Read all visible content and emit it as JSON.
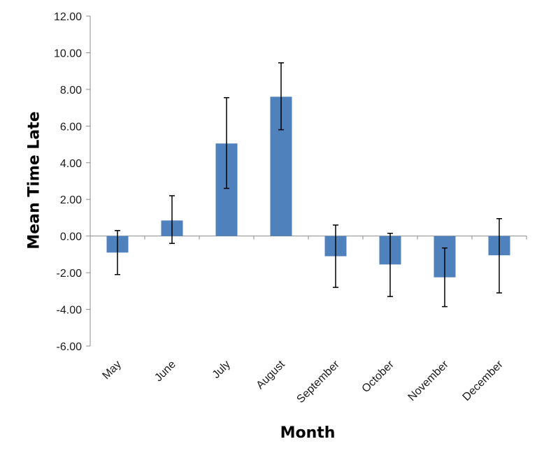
{
  "chart_data": {
    "type": "bar",
    "title": "",
    "xlabel": "Month",
    "ylabel": "Mean Time Late",
    "ylim": [
      -6,
      12
    ],
    "yticks": [
      -6,
      -4,
      -2,
      0,
      2,
      4,
      6,
      8,
      10,
      12
    ],
    "ytick_labels": [
      "-6.00",
      "-4.00",
      "-2.00",
      "0.00",
      "2.00",
      "4.00",
      "6.00",
      "8.00",
      "10.00",
      "12.00"
    ],
    "categories": [
      "May",
      "June",
      "July",
      "August",
      "September",
      "October",
      "November",
      "December"
    ],
    "values": [
      -0.9,
      0.85,
      5.05,
      7.6,
      -1.1,
      -1.55,
      -2.25,
      -1.05
    ],
    "error_lower": [
      -2.1,
      -0.4,
      2.6,
      5.8,
      -2.8,
      -3.3,
      -3.85,
      -3.1
    ],
    "error_upper": [
      0.3,
      2.2,
      7.55,
      9.45,
      0.6,
      0.15,
      -0.65,
      0.95
    ],
    "bar_color": "#4F81BD",
    "error_color": "#000000",
    "grid": false,
    "legend": "none"
  }
}
